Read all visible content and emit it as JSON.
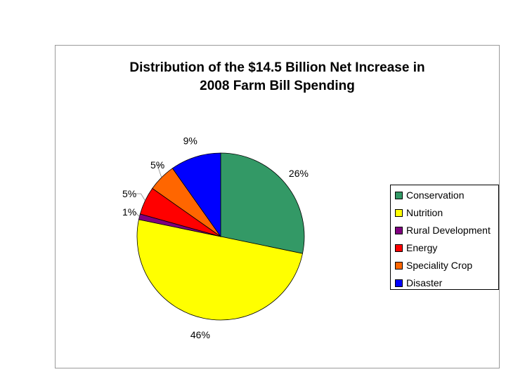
{
  "chart_data": {
    "type": "pie",
    "title": [
      "Distribution of the $14.5 Billion Net Increase in",
      "2008 Farm Bill Spending"
    ],
    "categories": [
      "Conservation",
      "Nutrition",
      "Rural Development",
      "Energy",
      "Speciality Crop",
      "Disaster"
    ],
    "values": [
      26,
      46,
      1,
      5,
      5,
      9
    ],
    "labels": [
      "26%",
      "46%",
      "1%",
      "5%",
      "5%",
      "9%"
    ],
    "colors": [
      "#339966",
      "#ffff00",
      "#800080",
      "#ff0000",
      "#ff6600",
      "#0000ff"
    ],
    "legend": "right"
  }
}
